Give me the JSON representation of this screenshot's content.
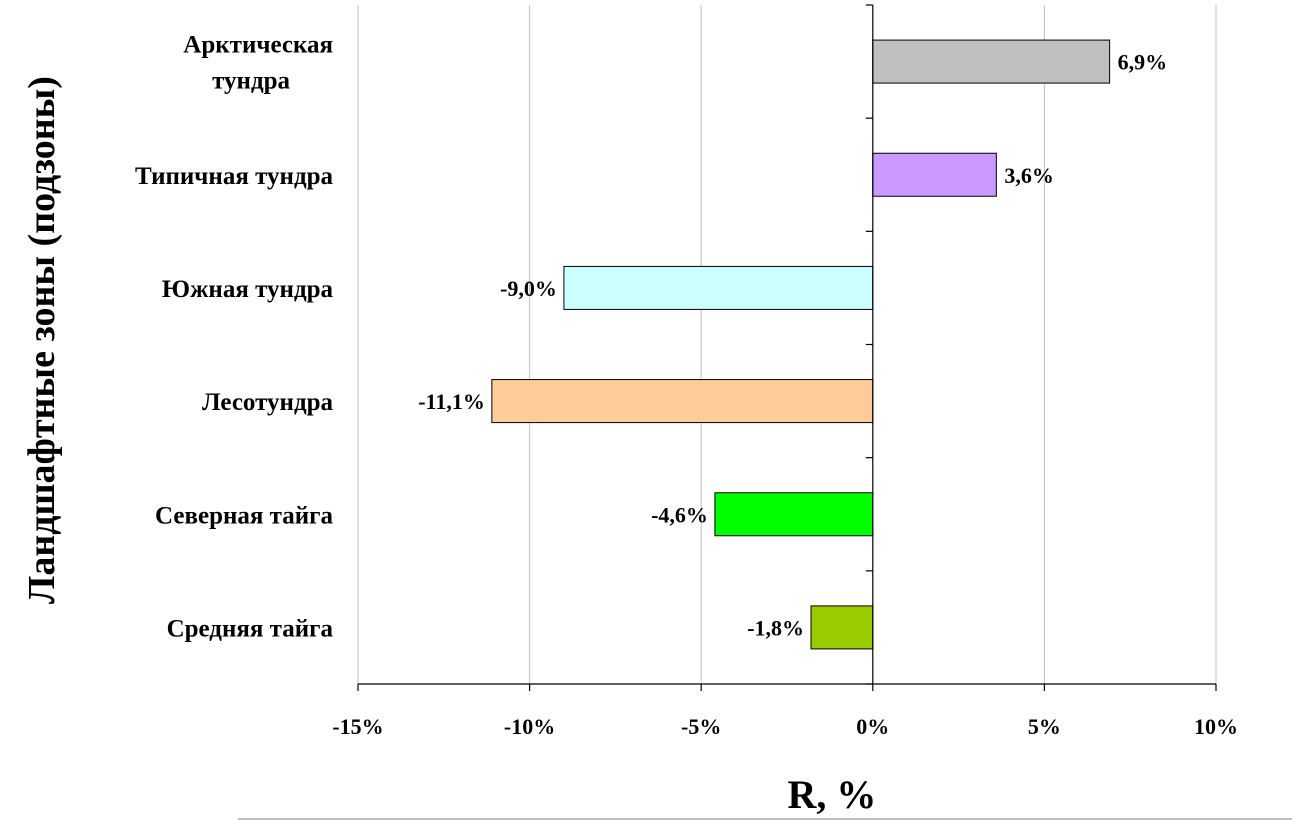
{
  "chart_data": {
    "type": "bar",
    "orientation": "horizontal",
    "categories": [
      [
        "Арктическая",
        "тундра"
      ],
      [
        "Типичная тундра"
      ],
      [
        "Южная тундра"
      ],
      [
        "Лесотундра"
      ],
      [
        "Северная тайга"
      ],
      [
        "Средняя тайга"
      ]
    ],
    "values": [
      6.9,
      3.6,
      -9.0,
      -11.1,
      -4.6,
      -1.8
    ],
    "data_labels": [
      "6,9%",
      "3,6%",
      "-9,0%",
      "-11,1%",
      "-4,6%",
      "-1,8%"
    ],
    "colors": [
      "#c0c0c0",
      "#cc99ff",
      "#ccffff",
      "#ffcc99",
      "#00ff00",
      "#99cc00"
    ],
    "xlim": [
      -15,
      10
    ],
    "xticks": [
      -15,
      -10,
      -5,
      0,
      5,
      10
    ],
    "xtick_labels": [
      "-15%",
      "-10%",
      "-5%",
      "0%",
      "5%",
      "10%"
    ],
    "xlabel": "R, %",
    "ylabel": "Ландшафтные зоны (подзоны)",
    "grid": "vertical",
    "gridline_color": "#c0c0c0"
  }
}
